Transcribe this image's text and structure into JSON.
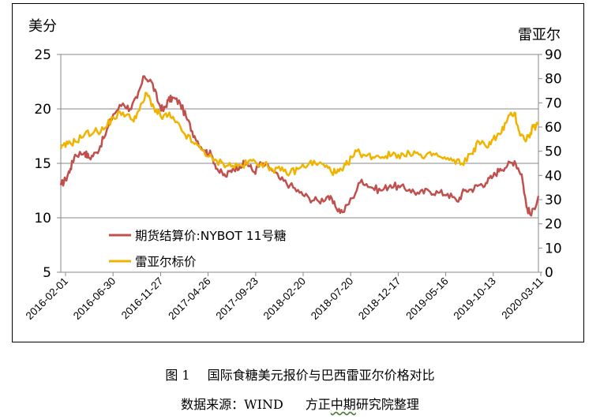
{
  "chart_data": {
    "type": "line",
    "left_axis_unit": "美分",
    "right_axis_unit": "雷亚尔",
    "left_axis": {
      "min": 5,
      "max": 25,
      "ticks": [
        25,
        20,
        15,
        10,
        5
      ]
    },
    "right_axis": {
      "min": 0,
      "max": 90,
      "ticks": [
        90,
        80,
        70,
        60,
        50,
        40,
        30,
        20,
        10,
        0
      ]
    },
    "x_tick_labels": [
      "2016-02-01",
      "2016-06-30",
      "2016-11-27",
      "2017-04-26",
      "2017-09-23",
      "2018-02-20",
      "2018-07-20",
      "2018-12-17",
      "2019-05-16",
      "2019-10-13",
      "2020-03-11"
    ],
    "series": [
      {
        "name": "期货结算价:NYBOT 11号糖",
        "color": "#c0504d",
        "axis": "left",
        "x": [
          0,
          0.01,
          0.02,
          0.03,
          0.05,
          0.06,
          0.075,
          0.09,
          0.11,
          0.13,
          0.145,
          0.16,
          0.175,
          0.19,
          0.205,
          0.215,
          0.225,
          0.235,
          0.25,
          0.265,
          0.28,
          0.3,
          0.315,
          0.33,
          0.345,
          0.36,
          0.375,
          0.39,
          0.405,
          0.42,
          0.44,
          0.46,
          0.48,
          0.5,
          0.52,
          0.54,
          0.56,
          0.575,
          0.59,
          0.61,
          0.63,
          0.65,
          0.67,
          0.69,
          0.71,
          0.73,
          0.75,
          0.77,
          0.79,
          0.81,
          0.83,
          0.845,
          0.86,
          0.875,
          0.89,
          0.905,
          0.92,
          0.935,
          0.95,
          0.965,
          0.975,
          0.985,
          1.0
        ],
        "values": [
          13.0,
          13.5,
          14.5,
          15.8,
          16.0,
          15.5,
          16.0,
          17.3,
          19.5,
          20.5,
          20.0,
          21.0,
          23.0,
          22.5,
          20.5,
          19.8,
          20.8,
          21.0,
          20.5,
          19.0,
          17.5,
          16.2,
          15.8,
          14.3,
          13.8,
          14.5,
          14.8,
          15.0,
          14.2,
          15.0,
          14.5,
          13.5,
          13.0,
          12.3,
          11.8,
          11.5,
          12.0,
          11.0,
          10.5,
          11.8,
          13.5,
          12.8,
          12.5,
          13.0,
          12.8,
          12.6,
          12.2,
          12.5,
          12.3,
          12.2,
          11.5,
          12.5,
          12.6,
          13.0,
          13.2,
          13.8,
          14.5,
          14.8,
          15.2,
          14.0,
          11.0,
          10.2,
          12.0
        ]
      },
      {
        "name": "雷亚尔标价",
        "color": "#f0b400",
        "axis": "right",
        "x": [
          0,
          0.015,
          0.03,
          0.05,
          0.07,
          0.09,
          0.11,
          0.13,
          0.15,
          0.165,
          0.18,
          0.195,
          0.21,
          0.225,
          0.24,
          0.26,
          0.28,
          0.3,
          0.32,
          0.34,
          0.36,
          0.38,
          0.4,
          0.42,
          0.44,
          0.46,
          0.48,
          0.5,
          0.52,
          0.54,
          0.56,
          0.575,
          0.59,
          0.6,
          0.62,
          0.64,
          0.66,
          0.68,
          0.7,
          0.72,
          0.74,
          0.76,
          0.78,
          0.8,
          0.82,
          0.84,
          0.86,
          0.875,
          0.89,
          0.905,
          0.92,
          0.935,
          0.95,
          0.96,
          0.97,
          0.98,
          0.99,
          1.0
        ],
        "values": [
          51,
          53,
          54,
          57,
          58,
          59,
          64,
          66,
          63,
          67,
          74,
          68,
          64,
          65,
          62,
          57,
          53,
          50,
          46,
          45,
          44,
          44,
          46,
          45,
          43,
          42,
          41,
          43,
          45,
          45,
          43,
          41,
          42,
          45,
          50,
          48,
          48,
          48,
          49,
          48,
          50,
          47,
          49,
          47,
          46,
          45,
          49,
          54,
          52,
          55,
          57,
          63,
          66,
          58,
          55,
          56,
          60,
          61
        ]
      }
    ]
  },
  "legend": {
    "item1": "期货结算价:NYBOT 11号糖",
    "item2": "雷亚尔标价"
  },
  "caption": {
    "figure_label": "图 1",
    "title": "国际食糖美元报价与巴西雷亚尔价格对比",
    "source_prefix": "数据来源：WIND",
    "source_org_a": "方正",
    "source_org_b": "中期",
    "source_org_c": "研究院整理"
  }
}
